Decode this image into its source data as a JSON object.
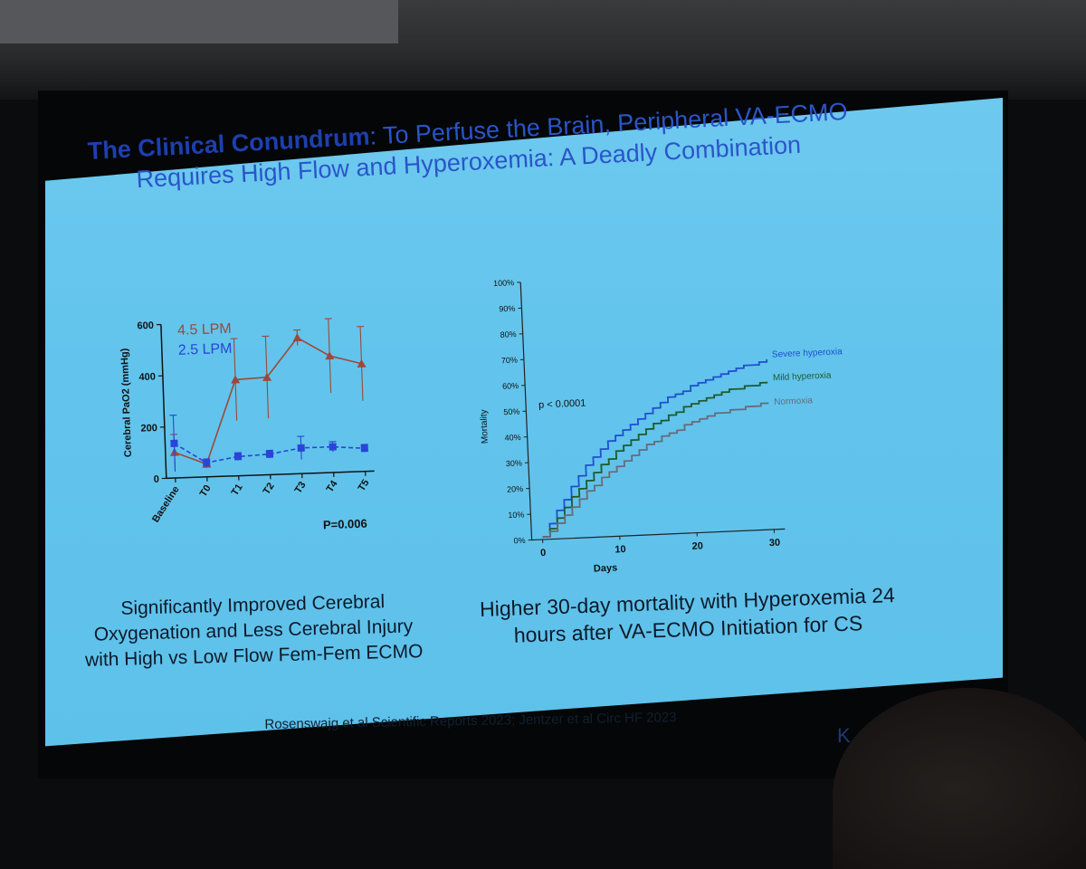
{
  "slide": {
    "title_bold": "The Clinical Conundrum",
    "title_rest": ": To Perfuse the Brain, Peripheral VA-ECMO",
    "title_line2": "Requires High Flow and Hyperoxemia: A Deadly Combination",
    "caption_left": "Significantly Improved Cerebral Oxygenation and Less Cerebral Injury with High vs Low Flow Fem-Fem ECMO",
    "caption_right": "Higher 30-day mortality with Hyperoxemia 24 hours after VA-ECMO Initiation for CS",
    "references": "Rosenswajg et al Scientific Reports 2023; Jentzer et al Circ HF 2023",
    "logo_fragment": "K"
  },
  "colors": {
    "slide_bg": "#62c4ec",
    "title_dark": "#1d3fb0",
    "series_high": "#9a4a3a",
    "series_low": "#2a44d8",
    "severe": "#1f4fd0",
    "mild": "#1e5a2e",
    "normoxia": "#6a6a7a"
  },
  "chart_data": [
    {
      "type": "line",
      "title": "",
      "xlabel": "",
      "ylabel": "Cerebral PaO2 (mmHg)",
      "ylim": [
        0,
        600
      ],
      "yticks": [
        "0",
        "200",
        "400",
        "600"
      ],
      "categories": [
        "Baseline",
        "T0",
        "T1",
        "T2",
        "T3",
        "T4",
        "T5"
      ],
      "series": [
        {
          "name": "4.5 LPM",
          "marker": "triangle",
          "line": "solid",
          "values": [
            100,
            50,
            375,
            380,
            530,
            455,
            420
          ],
          "err": [
            70,
            15,
            160,
            160,
            30,
            145,
            145
          ]
        },
        {
          "name": "2.5 LPM",
          "marker": "square",
          "line": "dashed",
          "values": [
            135,
            55,
            75,
            80,
            100,
            100,
            90
          ],
          "err": [
            110,
            15,
            15,
            15,
            45,
            20,
            15
          ]
        }
      ],
      "annotation": "P=0.006"
    },
    {
      "type": "line",
      "step": true,
      "title": "",
      "xlabel": "Days",
      "ylabel": "Mortality",
      "xlim": [
        0,
        30
      ],
      "xticks": [
        "0",
        "10",
        "20",
        "30"
      ],
      "ylim": [
        0,
        100
      ],
      "yticks": [
        "0%",
        "10%",
        "20%",
        "30%",
        "40%",
        "50%",
        "60%",
        "70%",
        "80%",
        "90%",
        "100%"
      ],
      "x": [
        0,
        1,
        2,
        3,
        4,
        5,
        6,
        7,
        8,
        9,
        10,
        11,
        12,
        13,
        14,
        15,
        16,
        17,
        18,
        19,
        20,
        21,
        22,
        23,
        24,
        25,
        26,
        27,
        28,
        29,
        30
      ],
      "series": [
        {
          "name": "Severe hyperoxia",
          "values": [
            1,
            6,
            11,
            15,
            20,
            24,
            28,
            31,
            34,
            37,
            39,
            41,
            43,
            45,
            47,
            49,
            51,
            53,
            54,
            55,
            57,
            58,
            59,
            60,
            61,
            62,
            63,
            64,
            64,
            65,
            66
          ]
        },
        {
          "name": "Mild hyperoxia",
          "values": [
            1,
            4,
            8,
            12,
            16,
            19,
            22,
            25,
            28,
            30,
            33,
            35,
            37,
            39,
            41,
            43,
            44,
            46,
            47,
            49,
            50,
            51,
            52,
            53,
            54,
            55,
            55,
            56,
            56,
            57,
            57
          ]
        },
        {
          "name": "Normoxia",
          "values": [
            1,
            3,
            6,
            9,
            12,
            15,
            18,
            20,
            23,
            25,
            27,
            29,
            31,
            33,
            35,
            36,
            38,
            39,
            40,
            42,
            43,
            44,
            45,
            46,
            46,
            47,
            47,
            48,
            48,
            49,
            49
          ]
        }
      ],
      "annotation": "p < 0.0001"
    }
  ]
}
